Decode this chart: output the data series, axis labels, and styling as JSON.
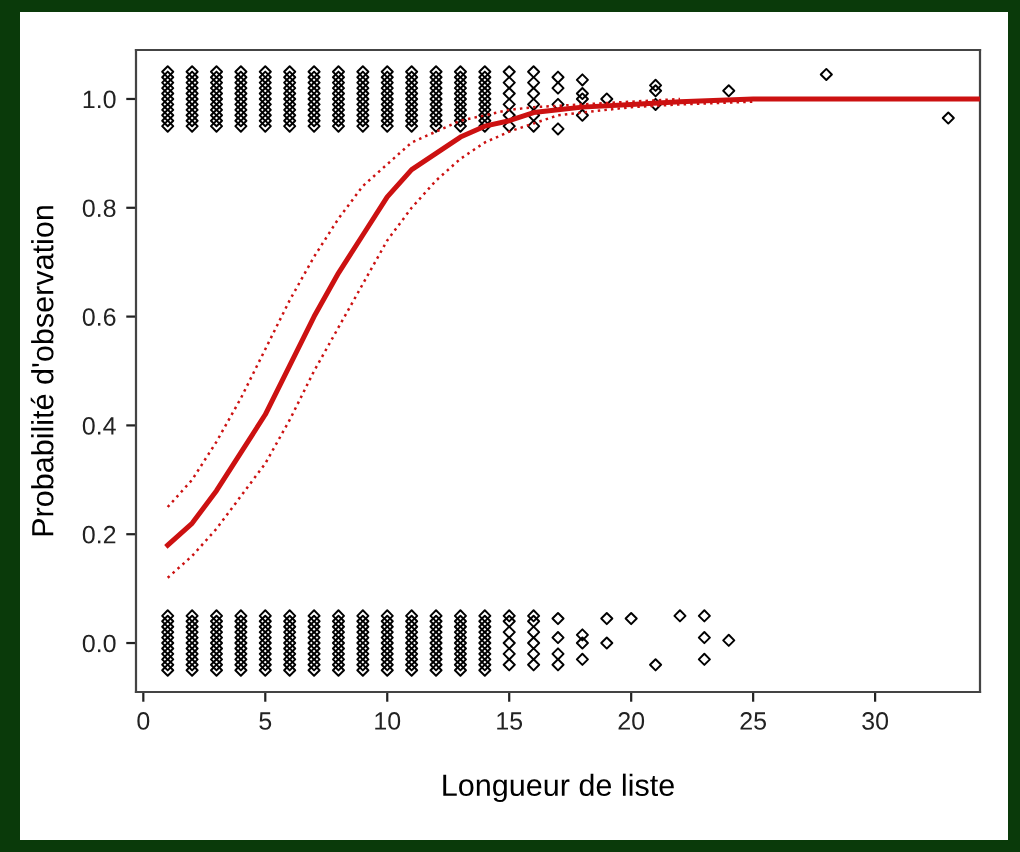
{
  "chart_data": {
    "type": "scatter",
    "xlabel": "Longueur de liste",
    "ylabel": "Probabilité d'observation",
    "xlim": [
      -0.3,
      34.3
    ],
    "ylim": [
      -0.09,
      1.09
    ],
    "xticks": [
      0,
      5,
      10,
      15,
      20,
      25,
      30
    ],
    "yticks": [
      {
        "value": 0,
        "label": "0.0"
      },
      0.2,
      0.4,
      0.6,
      0.8,
      {
        "value": 1,
        "label": "1.0"
      }
    ],
    "grid": false,
    "series": [
      {
        "color": "#000000",
        "marker": "diamond",
        "x": [
          1,
          1,
          1,
          1,
          1,
          1,
          1,
          1,
          1,
          1,
          1,
          2,
          2,
          2,
          2,
          2,
          2,
          2,
          2,
          2,
          2,
          2,
          3,
          3,
          3,
          3,
          3,
          3,
          3,
          3,
          3,
          3,
          3,
          4,
          4,
          4,
          4,
          4,
          4,
          4,
          4,
          4,
          4,
          4,
          5,
          5,
          5,
          5,
          5,
          5,
          5,
          5,
          5,
          5,
          5,
          6,
          6,
          6,
          6,
          6,
          6,
          6,
          6,
          6,
          6,
          6,
          7,
          7,
          7,
          7,
          7,
          7,
          7,
          7,
          7,
          7,
          7,
          8,
          8,
          8,
          8,
          8,
          8,
          8,
          8,
          8,
          8,
          8,
          9,
          9,
          9,
          9,
          9,
          9,
          9,
          9,
          9,
          9,
          9,
          10,
          10,
          10,
          10,
          10,
          10,
          10,
          10,
          10,
          10,
          10,
          11,
          11,
          11,
          11,
          11,
          11,
          11,
          11,
          11,
          11,
          11,
          12,
          12,
          12,
          12,
          12,
          12,
          12,
          12,
          12,
          12,
          12,
          13,
          13,
          13,
          13,
          13,
          13,
          13,
          13,
          13,
          13,
          13,
          14,
          14,
          14,
          14,
          14,
          14,
          14,
          14,
          14,
          14,
          14,
          15,
          15,
          15,
          15,
          15,
          15,
          16,
          16,
          16,
          16,
          16,
          16,
          17,
          17,
          17,
          17,
          18,
          18,
          18,
          18,
          19,
          21,
          21,
          21,
          24,
          28,
          33
        ],
        "values": [
          0.95,
          0.96,
          0.97,
          0.98,
          0.99,
          1.0,
          1.01,
          1.02,
          1.03,
          1.04,
          1.05,
          0.95,
          0.96,
          0.97,
          0.98,
          0.99,
          1.0,
          1.01,
          1.02,
          1.03,
          1.04,
          1.05,
          0.95,
          0.96,
          0.97,
          0.98,
          0.99,
          1.0,
          1.01,
          1.02,
          1.03,
          1.04,
          1.05,
          0.95,
          0.96,
          0.97,
          0.98,
          0.99,
          1.0,
          1.01,
          1.02,
          1.03,
          1.04,
          1.05,
          0.95,
          0.96,
          0.97,
          0.98,
          0.99,
          1.0,
          1.01,
          1.02,
          1.03,
          1.04,
          1.05,
          0.95,
          0.96,
          0.97,
          0.98,
          0.99,
          1.0,
          1.01,
          1.02,
          1.03,
          1.04,
          1.05,
          0.95,
          0.96,
          0.97,
          0.98,
          0.99,
          1.0,
          1.01,
          1.02,
          1.03,
          1.04,
          1.05,
          0.95,
          0.96,
          0.97,
          0.98,
          0.99,
          1.0,
          1.01,
          1.02,
          1.03,
          1.04,
          1.05,
          0.95,
          0.96,
          0.97,
          0.98,
          0.99,
          1.0,
          1.01,
          1.02,
          1.03,
          1.04,
          1.05,
          0.95,
          0.96,
          0.97,
          0.98,
          0.99,
          1.0,
          1.01,
          1.02,
          1.03,
          1.04,
          1.05,
          0.95,
          0.96,
          0.97,
          0.98,
          0.99,
          1.0,
          1.01,
          1.02,
          1.03,
          1.04,
          1.05,
          0.95,
          0.96,
          0.97,
          0.98,
          0.99,
          1.0,
          1.01,
          1.02,
          1.03,
          1.04,
          1.05,
          0.95,
          0.96,
          0.97,
          0.98,
          0.99,
          1.0,
          1.01,
          1.02,
          1.03,
          1.04,
          1.05,
          0.95,
          0.96,
          0.97,
          0.98,
          0.99,
          1.0,
          1.01,
          1.02,
          1.03,
          1.04,
          1.05,
          0.95,
          0.97,
          0.99,
          1.01,
          1.03,
          1.05,
          0.95,
          0.97,
          0.99,
          1.01,
          1.03,
          1.05,
          1.04,
          1.02,
          0.99,
          0.945,
          1.035,
          1.01,
          1.0,
          0.97,
          1.0,
          1.025,
          1.015,
          0.99,
          1.015,
          1.045,
          0.965
        ]
      },
      {
        "color": "#000000",
        "marker": "diamond",
        "x": [
          1,
          1,
          1,
          1,
          1,
          1,
          1,
          1,
          1,
          1,
          1,
          2,
          2,
          2,
          2,
          2,
          2,
          2,
          2,
          2,
          2,
          2,
          3,
          3,
          3,
          3,
          3,
          3,
          3,
          3,
          3,
          3,
          3,
          4,
          4,
          4,
          4,
          4,
          4,
          4,
          4,
          4,
          4,
          4,
          5,
          5,
          5,
          5,
          5,
          5,
          5,
          5,
          5,
          5,
          5,
          6,
          6,
          6,
          6,
          6,
          6,
          6,
          6,
          6,
          6,
          6,
          7,
          7,
          7,
          7,
          7,
          7,
          7,
          7,
          7,
          7,
          7,
          8,
          8,
          8,
          8,
          8,
          8,
          8,
          8,
          8,
          8,
          8,
          9,
          9,
          9,
          9,
          9,
          9,
          9,
          9,
          9,
          9,
          9,
          10,
          10,
          10,
          10,
          10,
          10,
          10,
          10,
          10,
          10,
          10,
          11,
          11,
          11,
          11,
          11,
          11,
          11,
          11,
          11,
          11,
          11,
          12,
          12,
          12,
          12,
          12,
          12,
          12,
          12,
          12,
          12,
          12,
          13,
          13,
          13,
          13,
          13,
          13,
          13,
          13,
          13,
          13,
          13,
          14,
          14,
          14,
          14,
          14,
          14,
          14,
          14,
          14,
          14,
          14,
          15,
          15,
          15,
          15,
          15,
          15,
          16,
          16,
          16,
          16,
          16,
          16,
          17,
          17,
          17,
          17,
          18,
          18,
          18,
          19,
          19,
          20,
          21,
          22,
          23,
          23,
          23,
          24
        ],
        "values": [
          -0.05,
          -0.04,
          -0.03,
          -0.02,
          -0.01,
          0.0,
          0.01,
          0.02,
          0.03,
          0.04,
          0.05,
          -0.05,
          -0.04,
          -0.03,
          -0.02,
          -0.01,
          0.0,
          0.01,
          0.02,
          0.03,
          0.04,
          0.05,
          -0.05,
          -0.04,
          -0.03,
          -0.02,
          -0.01,
          0.0,
          0.01,
          0.02,
          0.03,
          0.04,
          0.05,
          -0.05,
          -0.04,
          -0.03,
          -0.02,
          -0.01,
          0.0,
          0.01,
          0.02,
          0.03,
          0.04,
          0.05,
          -0.05,
          -0.04,
          -0.03,
          -0.02,
          -0.01,
          0.0,
          0.01,
          0.02,
          0.03,
          0.04,
          0.05,
          -0.05,
          -0.04,
          -0.03,
          -0.02,
          -0.01,
          0.0,
          0.01,
          0.02,
          0.03,
          0.04,
          0.05,
          -0.05,
          -0.04,
          -0.03,
          -0.02,
          -0.01,
          0.0,
          0.01,
          0.02,
          0.03,
          0.04,
          0.05,
          -0.05,
          -0.04,
          -0.03,
          -0.02,
          -0.01,
          0.0,
          0.01,
          0.02,
          0.03,
          0.04,
          0.05,
          -0.05,
          -0.04,
          -0.03,
          -0.02,
          -0.01,
          0.0,
          0.01,
          0.02,
          0.03,
          0.04,
          0.05,
          -0.05,
          -0.04,
          -0.03,
          -0.02,
          -0.01,
          0.0,
          0.01,
          0.02,
          0.03,
          0.04,
          0.05,
          -0.05,
          -0.04,
          -0.03,
          -0.02,
          -0.01,
          0.0,
          0.01,
          0.02,
          0.03,
          0.04,
          0.05,
          -0.05,
          -0.04,
          -0.03,
          -0.02,
          -0.01,
          0.0,
          0.01,
          0.02,
          0.03,
          0.04,
          0.05,
          -0.05,
          -0.04,
          -0.03,
          -0.02,
          -0.01,
          0.0,
          0.01,
          0.02,
          0.03,
          0.04,
          0.05,
          -0.05,
          -0.04,
          -0.03,
          -0.02,
          -0.01,
          0.0,
          0.01,
          0.02,
          0.03,
          0.04,
          0.05,
          -0.04,
          -0.02,
          0.0,
          0.02,
          0.04,
          0.05,
          -0.04,
          -0.02,
          0.0,
          0.02,
          0.04,
          0.05,
          0.045,
          0.01,
          -0.02,
          -0.04,
          0.015,
          0.0,
          -0.03,
          0.045,
          0.0,
          0.045,
          -0.04,
          0.05,
          0.05,
          0.01,
          -0.03,
          0.005
        ]
      },
      {
        "type": "line",
        "color": "#cc1111",
        "line_style": "solid",
        "marker": "none",
        "x": [
          1,
          2,
          3,
          4,
          5,
          6,
          7,
          8,
          9,
          10,
          11,
          12,
          13,
          14,
          15,
          16,
          17,
          18,
          20,
          22,
          25,
          34.3
        ],
        "values": [
          0.18,
          0.22,
          0.28,
          0.35,
          0.42,
          0.51,
          0.6,
          0.68,
          0.75,
          0.82,
          0.87,
          0.9,
          0.93,
          0.95,
          0.96,
          0.975,
          0.98,
          0.985,
          0.99,
          0.995,
          1.0,
          1.0
        ]
      },
      {
        "type": "line",
        "color": "#cc1111",
        "line_style": "dotted",
        "marker": "none",
        "x": [
          1,
          2,
          3,
          4,
          5,
          6,
          7,
          8,
          9,
          10,
          11,
          12,
          13,
          14,
          15,
          16,
          18,
          20,
          22
        ],
        "values": [
          0.25,
          0.3,
          0.37,
          0.45,
          0.54,
          0.63,
          0.71,
          0.78,
          0.84,
          0.88,
          0.92,
          0.94,
          0.96,
          0.97,
          0.98,
          0.985,
          0.99,
          0.995,
          1.0
        ]
      },
      {
        "type": "line",
        "color": "#cc1111",
        "line_style": "dotted",
        "marker": "none",
        "x": [
          1,
          2,
          3,
          4,
          5,
          6,
          7,
          8,
          9,
          10,
          11,
          12,
          13,
          14,
          15,
          16,
          17,
          18,
          20,
          22,
          25
        ],
        "values": [
          0.12,
          0.16,
          0.21,
          0.27,
          0.33,
          0.41,
          0.5,
          0.58,
          0.66,
          0.74,
          0.8,
          0.85,
          0.89,
          0.92,
          0.94,
          0.955,
          0.97,
          0.975,
          0.985,
          0.99,
          0.995
        ]
      }
    ]
  }
}
